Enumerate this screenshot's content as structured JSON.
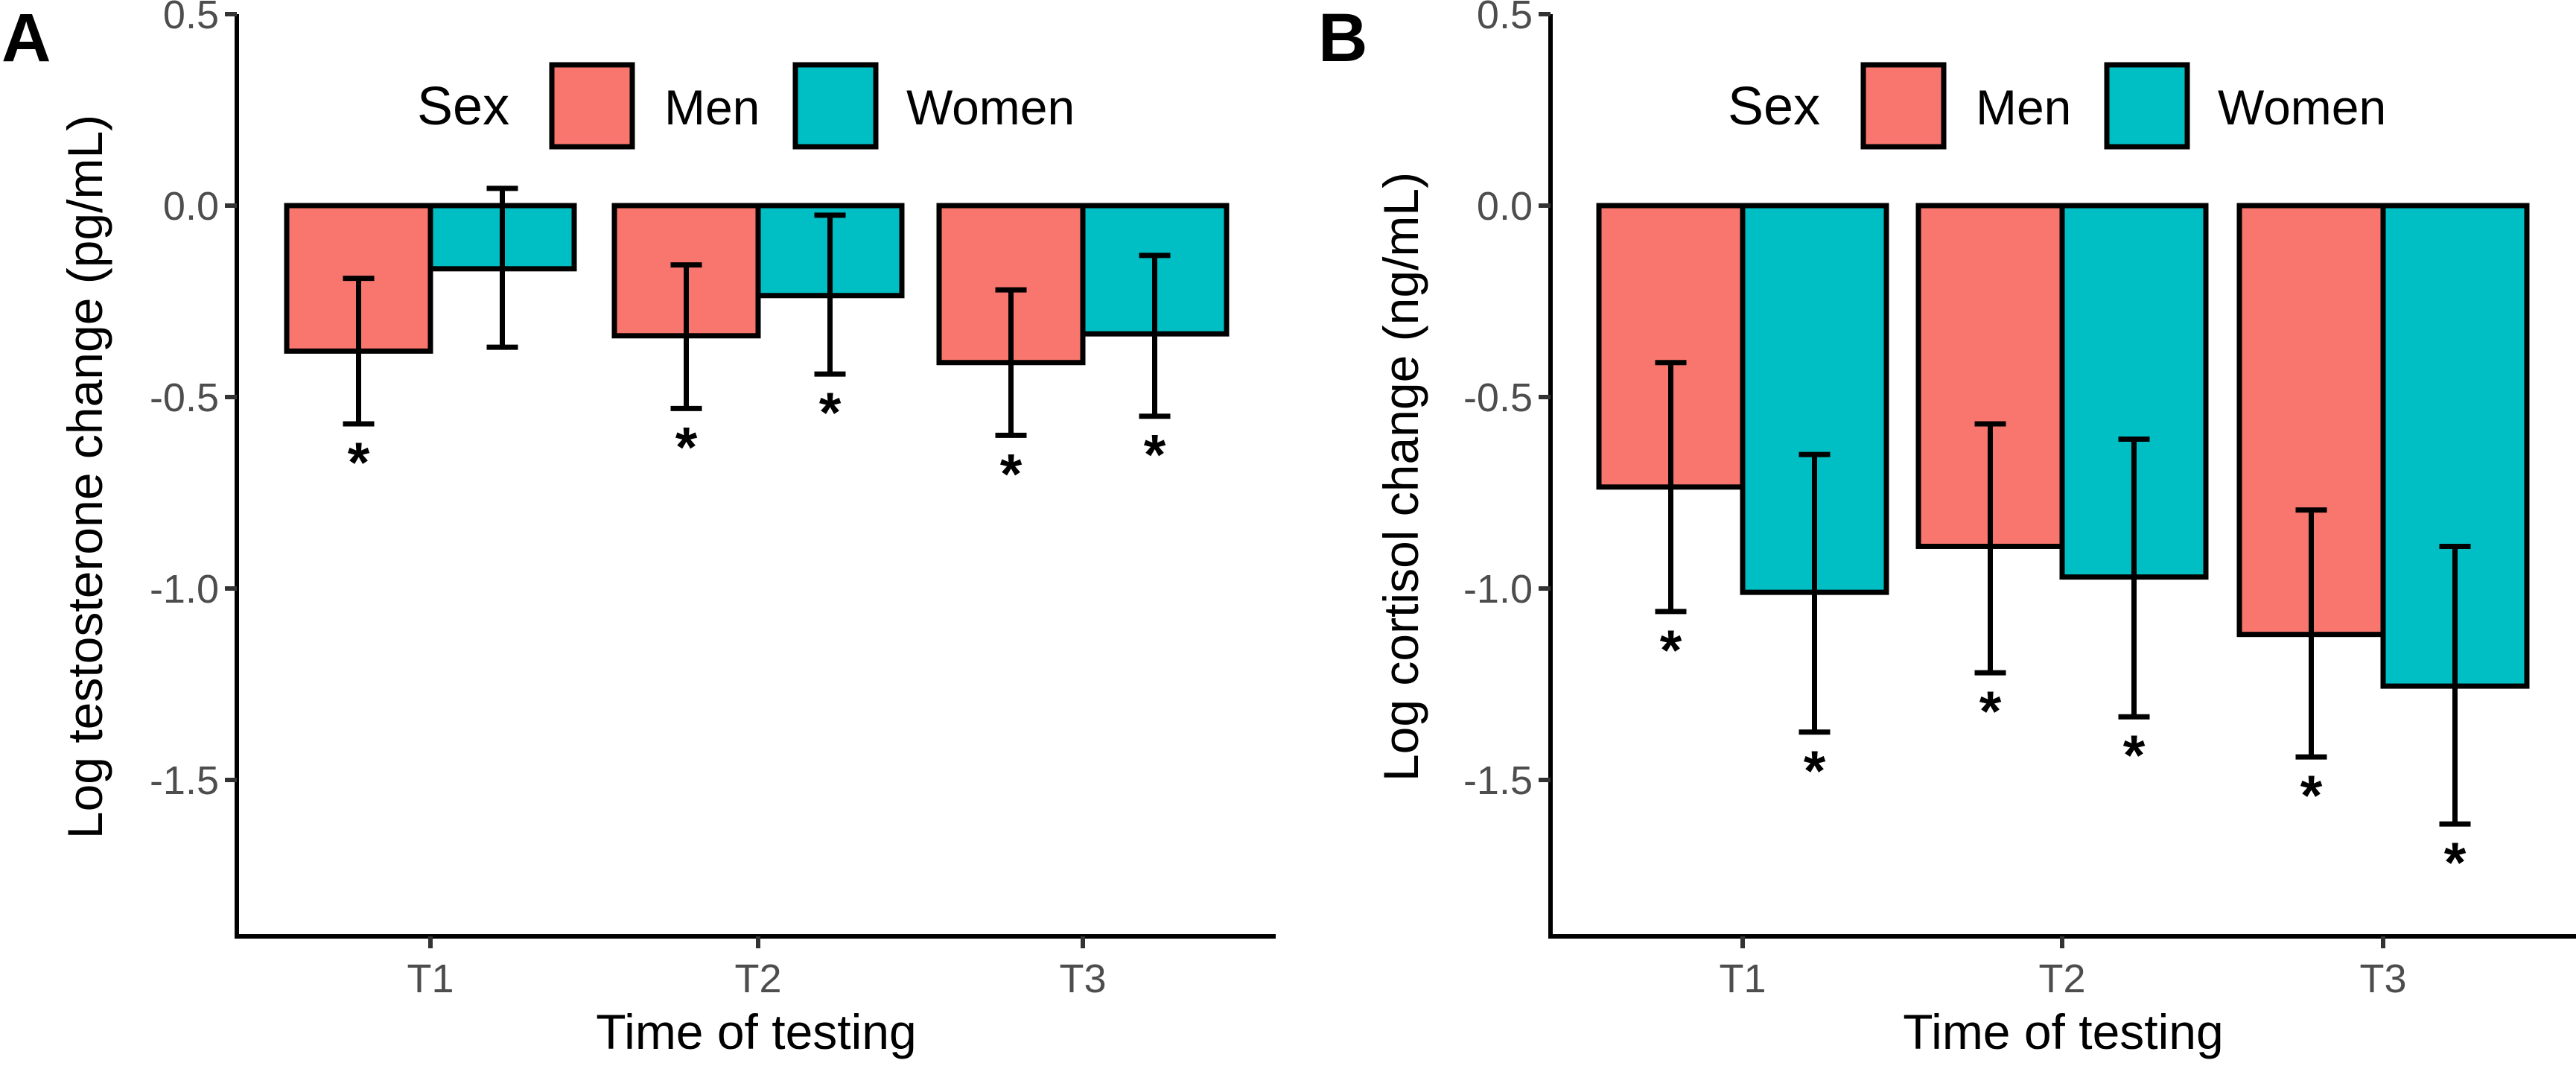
{
  "figure": {
    "panels": [
      "A",
      "B"
    ]
  },
  "chart_data": [
    {
      "type": "bar",
      "panel_label": "A",
      "title": "",
      "xlabel": "Time of testing",
      "ylabel": "Log testosterone change (pg/mL)",
      "categories": [
        "T1",
        "T2",
        "T3"
      ],
      "ylim": [
        -1.91,
        0.5
      ],
      "yticks": [
        0.5,
        0.0,
        -0.5,
        -1.0,
        -1.5
      ],
      "ytick_labels": [
        "0.5",
        "0.0",
        "-0.5",
        "-1.0",
        "-1.5"
      ],
      "grid": false,
      "legend": {
        "title": "Sex",
        "position": "top-center",
        "orientation": "horizontal",
        "entries": [
          "Men",
          "Women"
        ]
      },
      "series": [
        {
          "name": "Men",
          "color": "#F8766D",
          "values": [
            -0.38,
            -0.34,
            -0.41
          ],
          "error_low": [
            -0.57,
            -0.53,
            -0.6
          ],
          "error_high": [
            -0.19,
            -0.155,
            -0.22
          ],
          "significant": [
            true,
            true,
            true
          ]
        },
        {
          "name": "Women",
          "color": "#00BFC4",
          "values": [
            -0.165,
            -0.235,
            -0.335
          ],
          "error_low": [
            -0.37,
            -0.44,
            -0.55
          ],
          "error_high": [
            0.045,
            -0.025,
            -0.13
          ],
          "significant": [
            false,
            true,
            true
          ]
        }
      ],
      "annotation_symbol": "*"
    },
    {
      "type": "bar",
      "panel_label": "B",
      "title": "",
      "xlabel": "Time of testing",
      "ylabel": "Log cortisol change (ng/mL)",
      "categories": [
        "T1",
        "T2",
        "T3"
      ],
      "ylim": [
        -1.91,
        0.5
      ],
      "yticks": [
        0.5,
        0.0,
        -0.5,
        -1.0,
        -1.5
      ],
      "ytick_labels": [
        "0.5",
        "0.0",
        "-0.5",
        "-1.0",
        "-1.5"
      ],
      "grid": false,
      "legend": {
        "title": "Sex",
        "position": "top-center",
        "orientation": "horizontal",
        "entries": [
          "Men",
          "Women"
        ]
      },
      "series": [
        {
          "name": "Men",
          "color": "#F8766D",
          "values": [
            -0.735,
            -0.89,
            -1.12
          ],
          "error_low": [
            -1.06,
            -1.22,
            -1.44
          ],
          "error_high": [
            -0.41,
            -0.57,
            -0.795
          ],
          "significant": [
            true,
            true,
            true
          ]
        },
        {
          "name": "Women",
          "color": "#00BFC4",
          "values": [
            -1.01,
            -0.97,
            -1.255
          ],
          "error_low": [
            -1.375,
            -1.335,
            -1.615
          ],
          "error_high": [
            -0.65,
            -0.61,
            -0.89
          ],
          "significant": [
            true,
            true,
            true
          ]
        }
      ],
      "annotation_symbol": "*"
    }
  ]
}
